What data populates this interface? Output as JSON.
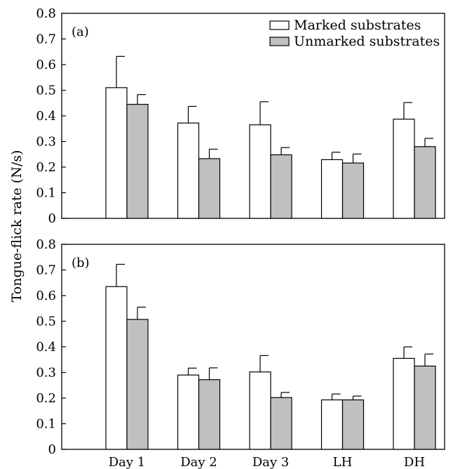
{
  "colors": {
    "marked": "#ffffff",
    "unmarked": "#c0c0c0",
    "stroke": "#000000"
  },
  "shared": {
    "ylabel": "Tongue-flick rate (N/s)"
  },
  "chart_data": [
    {
      "type": "bar",
      "panel_label": "(a)",
      "categories": [
        "Day 1",
        "Day 2",
        "Day 3",
        "LH",
        "DH"
      ],
      "series": [
        {
          "name": "Marked substrates",
          "values": [
            0.51,
            0.372,
            0.365,
            0.229,
            0.387
          ],
          "errors": [
            0.122,
            0.065,
            0.09,
            0.029,
            0.065
          ]
        },
        {
          "name": "Unmarked substrates",
          "values": [
            0.445,
            0.233,
            0.248,
            0.216,
            0.28
          ],
          "errors": [
            0.038,
            0.037,
            0.028,
            0.035,
            0.032
          ]
        }
      ],
      "ylim": [
        0,
        0.8
      ],
      "yticks": [
        "0",
        "0.1",
        "0.2",
        "0.3",
        "0.4",
        "0.5",
        "0.6",
        "0.7",
        "0.8"
      ],
      "show_xtick_labels": false,
      "legend_position": "top-right",
      "grid": false
    },
    {
      "type": "bar",
      "panel_label": "(b)",
      "categories": [
        "Day 1",
        "Day 2",
        "Day 3",
        "LH",
        "DH"
      ],
      "series": [
        {
          "name": "Marked substrates",
          "values": [
            0.635,
            0.29,
            0.302,
            0.193,
            0.355
          ],
          "errors": [
            0.087,
            0.027,
            0.064,
            0.023,
            0.045
          ]
        },
        {
          "name": "Unmarked substrates",
          "values": [
            0.507,
            0.272,
            0.202,
            0.193,
            0.325
          ],
          "errors": [
            0.048,
            0.046,
            0.02,
            0.015,
            0.047
          ]
        }
      ],
      "ylim": [
        0,
        0.8
      ],
      "yticks": [
        "0",
        "0.1",
        "0.2",
        "0.3",
        "0.4",
        "0.5",
        "0.6",
        "0.7",
        "0.8"
      ],
      "show_xtick_labels": true,
      "grid": false
    }
  ]
}
